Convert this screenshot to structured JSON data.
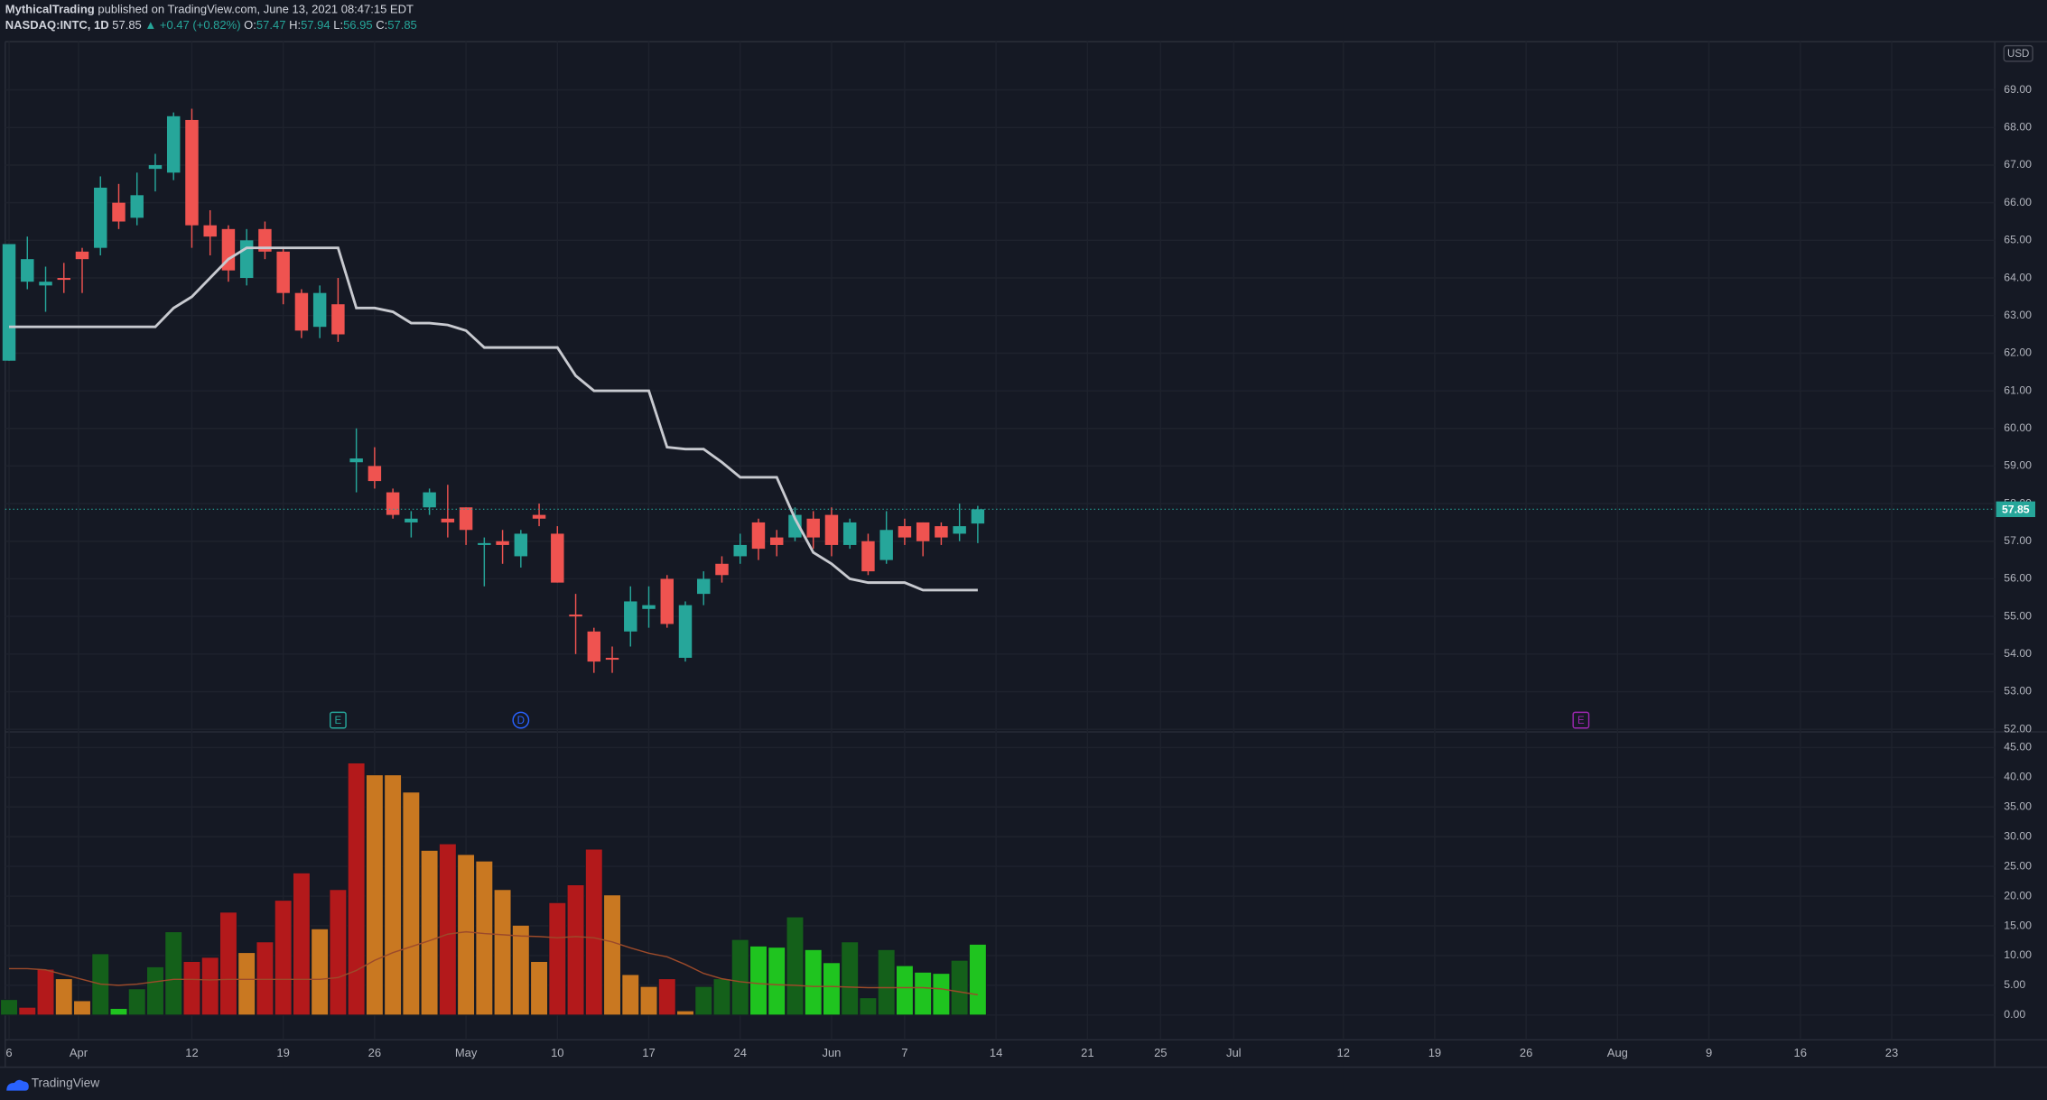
{
  "header": {
    "author": "MythicalTrading",
    "published": "published on TradingView.com, June 13, 2021 08:47:15 EDT",
    "symbol": "NASDAQ:INTC, 1D",
    "change": "▲ +0.47 (+0.82%)",
    "o": "O:",
    "h": "H:",
    "l": "L:",
    "c": "C:"
  },
  "currency": "USD",
  "brand": "TradingView",
  "chart_data": [
    {
      "type": "candlestick",
      "up_color": "#26a69a",
      "down_color": "#ef5350",
      "open": [
        61.8,
        63.9,
        63.8,
        64.0,
        64.7,
        64.8,
        66.0,
        65.6,
        66.9,
        66.8,
        68.2,
        65.4,
        65.3,
        64.0,
        65.3,
        64.7,
        63.6,
        62.7,
        63.3,
        59.1,
        59.0,
        58.3,
        57.5,
        57.9,
        57.6,
        57.9,
        56.9,
        57.0,
        56.6,
        57.7,
        57.2,
        55.05,
        54.6,
        53.9,
        54.6,
        55.2,
        56.0,
        53.9,
        55.6,
        56.4,
        56.6,
        57.5,
        57.1,
        57.1,
        57.6,
        57.7,
        56.9,
        57.0,
        56.5,
        57.4,
        57.5,
        57.4,
        57.2,
        57.47
      ],
      "high": [
        64.9,
        65.1,
        64.3,
        64.4,
        64.8,
        66.7,
        66.5,
        66.8,
        67.3,
        68.4,
        68.5,
        65.8,
        65.4,
        65.3,
        65.5,
        64.8,
        63.7,
        63.8,
        64.0,
        60.0,
        59.5,
        58.4,
        57.8,
        58.4,
        58.5,
        57.9,
        57.1,
        57.3,
        57.3,
        58.0,
        57.4,
        55.6,
        54.7,
        54.2,
        55.8,
        55.8,
        56.1,
        55.4,
        56.2,
        56.6,
        57.2,
        57.6,
        57.3,
        57.9,
        57.8,
        57.9,
        57.6,
        57.2,
        57.8,
        57.6,
        57.5,
        57.5,
        58.0,
        57.94
      ],
      "low": [
        61.8,
        63.7,
        63.1,
        63.6,
        63.6,
        64.6,
        65.3,
        65.4,
        66.3,
        66.6,
        64.8,
        64.6,
        63.9,
        63.8,
        64.5,
        63.3,
        62.4,
        62.4,
        62.3,
        58.3,
        58.4,
        57.6,
        57.1,
        57.7,
        57.1,
        56.9,
        55.8,
        56.4,
        56.3,
        57.4,
        55.9,
        54.0,
        53.5,
        53.5,
        54.2,
        54.7,
        54.7,
        53.8,
        55.3,
        55.9,
        56.4,
        56.5,
        56.6,
        57.0,
        56.8,
        56.6,
        56.8,
        56.1,
        56.4,
        56.9,
        56.6,
        56.9,
        57.0,
        56.95
      ],
      "close": [
        64.9,
        64.5,
        63.9,
        63.95,
        64.5,
        66.4,
        65.5,
        66.2,
        67.0,
        68.3,
        65.4,
        65.1,
        64.2,
        65.0,
        64.7,
        63.6,
        62.6,
        63.6,
        62.5,
        59.2,
        58.6,
        57.7,
        57.6,
        58.3,
        57.5,
        57.3,
        56.95,
        56.9,
        57.2,
        57.6,
        55.9,
        55.0,
        53.8,
        53.85,
        55.4,
        55.3,
        54.8,
        55.3,
        56.0,
        56.1,
        56.9,
        56.8,
        56.9,
        57.7,
        57.1,
        56.9,
        57.5,
        56.2,
        57.3,
        57.1,
        57.0,
        57.1,
        57.4,
        57.85
      ],
      "overlay": {
        "color": "#c8cad0",
        "values": [
          62.7,
          62.7,
          62.7,
          62.7,
          62.7,
          62.7,
          62.7,
          62.7,
          62.7,
          63.2,
          63.5,
          64.0,
          64.5,
          64.8,
          64.8,
          64.8,
          64.8,
          64.8,
          64.8,
          63.2,
          63.2,
          63.1,
          62.8,
          62.8,
          62.75,
          62.6,
          62.15,
          62.15,
          62.15,
          62.15,
          62.15,
          61.4,
          61.0,
          61.0,
          61.0,
          61.0,
          59.5,
          59.45,
          59.45,
          59.1,
          58.7,
          58.7,
          58.7,
          57.6,
          56.7,
          56.4,
          56.0,
          55.9,
          55.9,
          55.9,
          55.7,
          55.7,
          55.7,
          55.7
        ]
      },
      "events": [
        {
          "label": "E",
          "x": 18,
          "color": "#26a69a",
          "shape": "square"
        },
        {
          "label": "D",
          "x": 28,
          "color": "#2962ff",
          "shape": "circle"
        },
        {
          "label": "E",
          "x": 86,
          "color": "#9c27b0",
          "shape": "square"
        }
      ],
      "xlim": [
        -0.21,
        108.64
      ],
      "xticks": [
        {
          "value": 0,
          "label": "6"
        },
        {
          "value": 3.8,
          "label": "Apr"
        },
        {
          "value": 10,
          "label": "12"
        },
        {
          "value": 15,
          "label": "19"
        },
        {
          "value": 20,
          "label": "26"
        },
        {
          "value": 25,
          "label": "May"
        },
        {
          "value": 30,
          "label": "10"
        },
        {
          "value": 35,
          "label": "17"
        },
        {
          "value": 40,
          "label": "24"
        },
        {
          "value": 45,
          "label": "Jun"
        },
        {
          "value": 49,
          "label": "7"
        },
        {
          "value": 54,
          "label": "14"
        },
        {
          "value": 59,
          "label": "21"
        },
        {
          "value": 63,
          "label": "25"
        },
        {
          "value": 67,
          "label": "Jul"
        },
        {
          "value": 73,
          "label": "12"
        },
        {
          "value": 78,
          "label": "19"
        },
        {
          "value": 83,
          "label": "26"
        },
        {
          "value": 88,
          "label": "Aug"
        },
        {
          "value": 93,
          "label": "9"
        },
        {
          "value": 98,
          "label": "16"
        },
        {
          "value": 103,
          "label": "23"
        }
      ],
      "ylim": [
        51.93,
        70.28
      ],
      "yticks": [
        {
          "value": 52,
          "label": "52.00"
        },
        {
          "value": 53,
          "label": "53.00"
        },
        {
          "value": 54,
          "label": "54.00"
        },
        {
          "value": 55,
          "label": "55.00"
        },
        {
          "value": 56,
          "label": "56.00"
        },
        {
          "value": 57,
          "label": "57.00"
        },
        {
          "value": 58,
          "label": "58.00"
        },
        {
          "value": 59,
          "label": "59.00"
        },
        {
          "value": 60,
          "label": "60.00"
        },
        {
          "value": 61,
          "label": "61.00"
        },
        {
          "value": 62,
          "label": "62.00"
        },
        {
          "value": 63,
          "label": "63.00"
        },
        {
          "value": 64,
          "label": "64.00"
        },
        {
          "value": 65,
          "label": "65.00"
        },
        {
          "value": 66,
          "label": "66.00"
        },
        {
          "value": 67,
          "label": "67.00"
        },
        {
          "value": 68,
          "label": "68.00"
        },
        {
          "value": 69,
          "label": "69.00"
        }
      ],
      "grid": true
    },
    {
      "type": "bar",
      "values": [
        2.6,
        1.3,
        7.7,
        6.1,
        2.4,
        10.3,
        1.1,
        4.4,
        8.1,
        14.0,
        9.0,
        9.7,
        17.3,
        10.5,
        12.3,
        19.3,
        23.9,
        14.5,
        21.1,
        42.4,
        40.4,
        40.4,
        37.5,
        27.7,
        28.8,
        27.0,
        25.9,
        21.1,
        15.1,
        9.0,
        18.9,
        21.9,
        27.9,
        20.2,
        6.8,
        4.8,
        6.1,
        0.7,
        4.8,
        6.1,
        12.7,
        11.6,
        11.4,
        16.5,
        11.0,
        8.8,
        12.3,
        2.9,
        11.0,
        8.3,
        7.2,
        7.0,
        9.2,
        11.9
      ],
      "bar_colors": [
        "#14601a",
        "#b3191b",
        "#b3191b",
        "#c97821",
        "#c97821",
        "#14601a",
        "#1fc41f",
        "#14601a",
        "#14601a",
        "#14601a",
        "#b3191b",
        "#b3191b",
        "#b3191b",
        "#c97821",
        "#b3191b",
        "#b3191b",
        "#b3191b",
        "#c97821",
        "#b3191b",
        "#b3191b",
        "#c97821",
        "#c97821",
        "#c97821",
        "#c97821",
        "#b3191b",
        "#c97821",
        "#c97821",
        "#c97821",
        "#c97821",
        "#c97821",
        "#b3191b",
        "#b3191b",
        "#b3191b",
        "#c97821",
        "#c97821",
        "#c97821",
        "#b3191b",
        "#c97821",
        "#14601a",
        "#14601a",
        "#14601a",
        "#1fc41f",
        "#1fc41f",
        "#14601a",
        "#1fc41f",
        "#1fc41f",
        "#14601a",
        "#14601a",
        "#14601a",
        "#1fc41f",
        "#1fc41f",
        "#1fc41f",
        "#14601a",
        "#1fc41f"
      ],
      "ma": {
        "color": "#9c4a2a",
        "values": [
          7.8,
          7.8,
          7.6,
          6.8,
          6.0,
          5.2,
          5.0,
          5.2,
          5.6,
          6.0,
          6.0,
          5.9,
          6.0,
          6.0,
          6.0,
          6.0,
          6.0,
          6.0,
          6.3,
          7.5,
          9.2,
          10.5,
          11.5,
          12.5,
          13.6,
          14.0,
          13.7,
          13.5,
          13.3,
          13.2,
          13.0,
          13.2,
          13.0,
          12.3,
          11.3,
          10.4,
          9.8,
          8.5,
          7.0,
          6.1,
          5.6,
          5.3,
          5.1,
          5.0,
          4.8,
          4.8,
          4.7,
          4.6,
          4.6,
          4.6,
          4.6,
          4.4,
          3.9,
          3.4
        ]
      },
      "ylim": [
        -4.17,
        47.63
      ],
      "yticks": [
        {
          "value": 0,
          "label": "0.00"
        },
        {
          "value": 5,
          "label": "5.00"
        },
        {
          "value": 10,
          "label": "10.00"
        },
        {
          "value": 15,
          "label": "15.00"
        },
        {
          "value": 20,
          "label": "20.00"
        },
        {
          "value": 25,
          "label": "25.00"
        },
        {
          "value": 30,
          "label": "30.00"
        },
        {
          "value": 35,
          "label": "35.00"
        },
        {
          "value": 40,
          "label": "40.00"
        },
        {
          "value": 45,
          "label": "45.00"
        }
      ],
      "grid": true
    }
  ]
}
